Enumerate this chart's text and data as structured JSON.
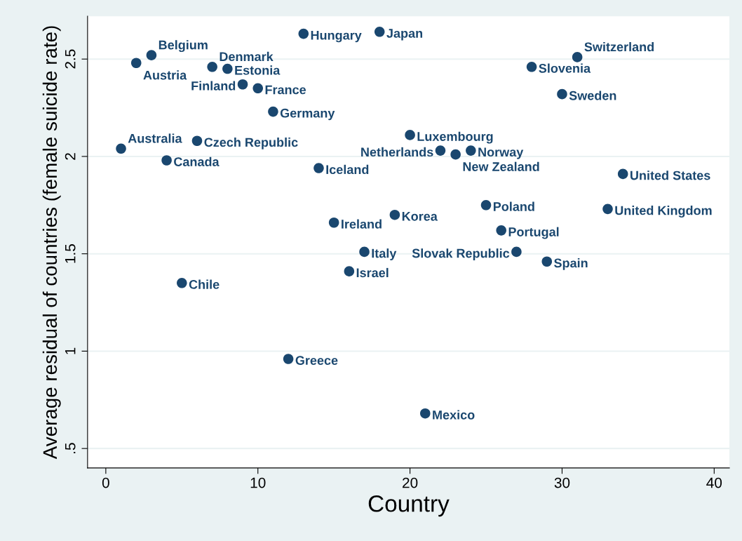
{
  "chart_data": {
    "type": "scatter",
    "xlabel": "Country",
    "ylabel": "Average residual of countries (female suicide rate)",
    "x": [
      1,
      2,
      3,
      4,
      5,
      6,
      7,
      8,
      9,
      10,
      11,
      12,
      13,
      14,
      15,
      16,
      17,
      18,
      19,
      20,
      21,
      22,
      23,
      24,
      25,
      26,
      27,
      28,
      29,
      30,
      31,
      33,
      34
    ],
    "series": [
      {
        "color": "#1a476f",
        "values": [
          2.04,
          2.48,
          2.52,
          1.98,
          1.35,
          2.08,
          2.46,
          2.45,
          2.37,
          2.35,
          2.23,
          0.96,
          2.63,
          1.94,
          1.66,
          1.41,
          1.51,
          2.64,
          1.7,
          2.11,
          0.68,
          2.03,
          2.01,
          2.03,
          1.75,
          1.62,
          1.51,
          2.46,
          1.46,
          2.32,
          2.51,
          1.73,
          1.91
        ]
      }
    ],
    "annotations": [
      {
        "text": "Australia",
        "x": 1,
        "y": 2.04
      },
      {
        "text": "Austria",
        "x": 2,
        "y": 2.48
      },
      {
        "text": "Belgium",
        "x": 3,
        "y": 2.52
      },
      {
        "text": "Canada",
        "x": 4,
        "y": 1.98
      },
      {
        "text": "Chile",
        "x": 5,
        "y": 1.35
      },
      {
        "text": "Czech Republic",
        "x": 6,
        "y": 2.08
      },
      {
        "text": "Denmark",
        "x": 7,
        "y": 2.46
      },
      {
        "text": "Estonia",
        "x": 8,
        "y": 2.45
      },
      {
        "text": "Finland",
        "x": 9,
        "y": 2.37
      },
      {
        "text": "France",
        "x": 10,
        "y": 2.35
      },
      {
        "text": "Germany",
        "x": 11,
        "y": 2.23
      },
      {
        "text": "Greece",
        "x": 12,
        "y": 0.96
      },
      {
        "text": "Hungary",
        "x": 13,
        "y": 2.63
      },
      {
        "text": "Iceland",
        "x": 14,
        "y": 1.94
      },
      {
        "text": "Ireland",
        "x": 15,
        "y": 1.66
      },
      {
        "text": "Israel",
        "x": 16,
        "y": 1.41
      },
      {
        "text": "Italy",
        "x": 17,
        "y": 1.51
      },
      {
        "text": "Japan",
        "x": 18,
        "y": 2.64
      },
      {
        "text": "Korea",
        "x": 19,
        "y": 1.7
      },
      {
        "text": "Luxembourg",
        "x": 20,
        "y": 2.11
      },
      {
        "text": "Mexico",
        "x": 21,
        "y": 0.68
      },
      {
        "text": "Netherlands",
        "x": 22,
        "y": 2.03
      },
      {
        "text": "New Zealand",
        "x": 23,
        "y": 2.01
      },
      {
        "text": "Norway",
        "x": 24,
        "y": 2.03
      },
      {
        "text": "Poland",
        "x": 25,
        "y": 1.75
      },
      {
        "text": "Portugal",
        "x": 26,
        "y": 1.62
      },
      {
        "text": "Slovak Republic",
        "x": 27,
        "y": 1.51
      },
      {
        "text": "Slovenia",
        "x": 28,
        "y": 2.46
      },
      {
        "text": "Spain",
        "x": 29,
        "y": 1.46
      },
      {
        "text": "Sweden",
        "x": 30,
        "y": 2.32
      },
      {
        "text": "Switzerland",
        "x": 31,
        "y": 2.51
      },
      {
        "text": "United Kingdom",
        "x": 33,
        "y": 1.73
      },
      {
        "text": "United States",
        "x": 34,
        "y": 1.91
      }
    ],
    "xlim": [
      -1.2,
      41
    ],
    "ylim": [
      0.4,
      2.72
    ],
    "xticks": [
      0,
      10,
      20,
      30,
      40
    ],
    "yticks": [
      {
        "value": 0.5,
        "label": ".5"
      },
      1,
      1.5,
      2,
      2.5
    ],
    "grid": "y",
    "marker": "circle",
    "legend": false
  }
}
